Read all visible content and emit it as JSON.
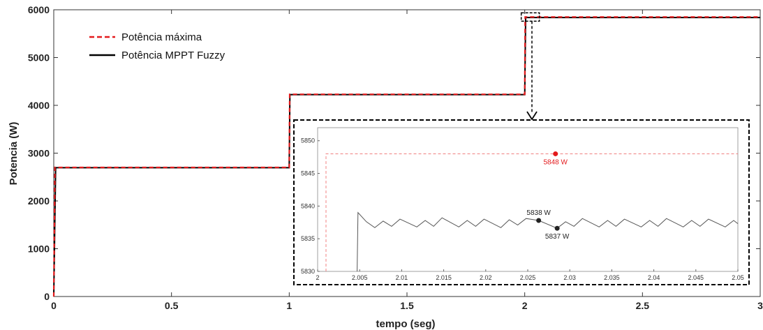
{
  "chart_data": [
    {
      "type": "line",
      "xlabel": "tempo (seg)",
      "ylabel": "Potencia (W)",
      "xlim": [
        0,
        3
      ],
      "ylim": [
        0,
        6000
      ],
      "xticks": [
        "0",
        "0.5",
        "1",
        "1.5",
        "2",
        "2.5",
        "3"
      ],
      "yticks": [
        "0",
        "1000",
        "2000",
        "3000",
        "4000",
        "5000",
        "6000"
      ],
      "legend_position": "top-left",
      "series": [
        {
          "name": "Potência máxima",
          "style": "dashed",
          "color": "#e31a1c",
          "points": [
            [
              0,
              0
            ],
            [
              0.005,
              2700
            ],
            [
              1.0,
              2700
            ],
            [
              1.002,
              4230
            ],
            [
              2.0,
              4230
            ],
            [
              2.002,
              5848
            ],
            [
              3.0,
              5848
            ]
          ]
        },
        {
          "name": "Potência MPPT Fuzzy",
          "style": "solid",
          "color": "#000000",
          "points": [
            [
              0,
              0
            ],
            [
              0.008,
              2695
            ],
            [
              1.0,
              2695
            ],
            [
              1.003,
              4225
            ],
            [
              2.0,
              4225
            ],
            [
              2.004,
              5838
            ],
            [
              3.0,
              5838
            ]
          ]
        }
      ]
    },
    {
      "type": "line",
      "inset": true,
      "xlim": [
        2,
        2.05
      ],
      "ylim": [
        5830,
        5852
      ],
      "xticks": [
        "2",
        "2.005",
        "2.01",
        "2.015",
        "2.02",
        "2.025",
        "2.03",
        "2.035",
        "2.04",
        "2.045",
        "2.05"
      ],
      "yticks": [
        "5830",
        "5835",
        "5840",
        "5845",
        "5850"
      ],
      "series": [
        {
          "name": "Potência máxima",
          "style": "dashed",
          "color": "#f08080",
          "points": [
            [
              2.001,
              5830
            ],
            [
              2.001,
              5848
            ],
            [
              2.05,
              5848
            ]
          ]
        },
        {
          "name": "Potência MPPT Fuzzy",
          "style": "solid",
          "color": "#555555",
          "points": [
            [
              2.0047,
              5830
            ],
            [
              2.0048,
              5839
            ],
            [
              2.0058,
              5837.6
            ],
            [
              2.0068,
              5836.7
            ],
            [
              2.0078,
              5837.7
            ],
            [
              2.0088,
              5836.9
            ],
            [
              2.0098,
              5838
            ],
            [
              2.0118,
              5836.8
            ],
            [
              2.0128,
              5837.8
            ],
            [
              2.0138,
              5836.9
            ],
            [
              2.0148,
              5838.2
            ],
            [
              2.0168,
              5836.8
            ],
            [
              2.0178,
              5837.8
            ],
            [
              2.0188,
              5836.9
            ],
            [
              2.0198,
              5838
            ],
            [
              2.0218,
              5836.7
            ],
            [
              2.0228,
              5837.9
            ],
            [
              2.0238,
              5837.1
            ],
            [
              2.0248,
              5838.1
            ],
            [
              2.0263,
              5837.8
            ],
            [
              2.0285,
              5836.6
            ],
            [
              2.0295,
              5837.6
            ],
            [
              2.0305,
              5836.9
            ],
            [
              2.0315,
              5838.1
            ],
            [
              2.0335,
              5836.8
            ],
            [
              2.0345,
              5837.8
            ],
            [
              2.0355,
              5836.9
            ],
            [
              2.0365,
              5838
            ],
            [
              2.0385,
              5836.8
            ],
            [
              2.0395,
              5837.8
            ],
            [
              2.0405,
              5836.9
            ],
            [
              2.0415,
              5838.1
            ],
            [
              2.0435,
              5836.8
            ],
            [
              2.0445,
              5837.8
            ],
            [
              2.0455,
              5836.9
            ],
            [
              2.0465,
              5838
            ],
            [
              2.0485,
              5836.8
            ],
            [
              2.0495,
              5837.8
            ],
            [
              2.05,
              5837.3
            ]
          ]
        }
      ],
      "annotations": [
        {
          "text": "5848 W",
          "x": 2.0283,
          "y": 5848,
          "color": "#e31a1c",
          "placement": "below"
        },
        {
          "text": "5838 W",
          "x": 2.0263,
          "y": 5837.8,
          "color": "#222222",
          "placement": "above"
        },
        {
          "text": "5837 W",
          "x": 2.0285,
          "y": 5836.6,
          "color": "#222222",
          "placement": "below"
        }
      ]
    }
  ]
}
